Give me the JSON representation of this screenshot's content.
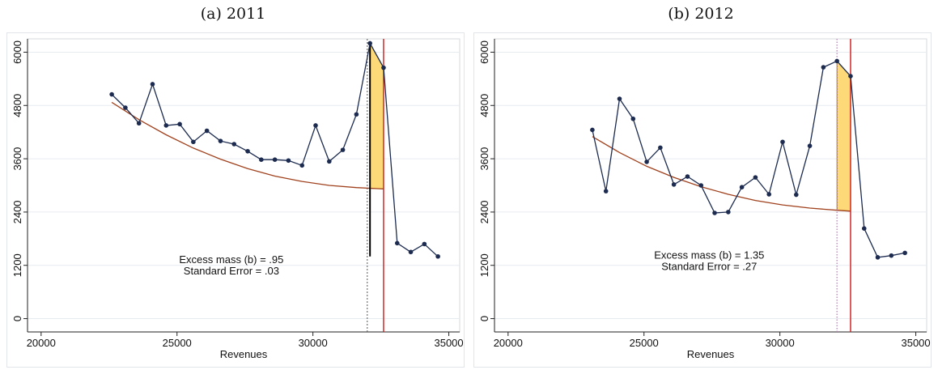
{
  "chart_data": [
    {
      "type": "line",
      "title": "(a) 2011",
      "xlabel": "Revenues",
      "ylabel": "",
      "xlim": [
        19500,
        35400
      ],
      "ylim": [
        -300,
        6300
      ],
      "xticks": [
        20000,
        25000,
        30000,
        35000
      ],
      "yticks": [
        0,
        1200,
        2400,
        3600,
        4800,
        6000
      ],
      "grid": true,
      "legend": "none",
      "series": [
        {
          "x": [
            22600,
            23100,
            23600,
            24100,
            24600,
            25100,
            25600,
            26100,
            26600,
            27100,
            27600,
            28100,
            28600,
            29100,
            29600,
            30100,
            30600,
            31100,
            31600,
            32100,
            32600,
            33100,
            33600,
            34100,
            34600
          ],
          "values": [
            5050,
            4750,
            4400,
            5280,
            4350,
            4380,
            3980,
            4230,
            4000,
            3930,
            3770,
            3580,
            3580,
            3560,
            3450,
            4350,
            3540,
            3800,
            4600,
            6200,
            5650,
            1700,
            1500,
            1680,
            1400
          ]
        }
      ],
      "fit_curve": {
        "x": [
          22600,
          23600,
          24600,
          25600,
          26600,
          27600,
          28600,
          29600,
          30600,
          31600,
          32600
        ],
        "values": [
          4870,
          4480,
          4140,
          3840,
          3590,
          3380,
          3210,
          3090,
          3000,
          2950,
          2920
        ]
      },
      "excess_region": {
        "x_from": 32100,
        "x_to": 32600
      },
      "lines": {
        "dashed_x": 32000,
        "black_x": 32100,
        "black_top": 6200,
        "black_bottom": 1400,
        "red_x": 32600
      },
      "annotations": [
        "Excess mass (b) = .95",
        "Standard Error = .03"
      ],
      "annotation_pos": [
        27000,
        1250
      ],
      "colors": {
        "series": "#1c2b4f",
        "fit": "#a0411d",
        "fill": "#fdd978",
        "red": "#cc1a1a",
        "black": "#000000",
        "grid": "#e6ebf0"
      }
    },
    {
      "type": "line",
      "title": "(b) 2012",
      "xlabel": "Revenues",
      "ylabel": "",
      "xlim": [
        19500,
        35400
      ],
      "ylim": [
        -300,
        6300
      ],
      "xticks": [
        20000,
        25000,
        30000,
        35000
      ],
      "yticks": [
        0,
        1200,
        2400,
        3600,
        4800,
        6000
      ],
      "grid": true,
      "legend": "none",
      "series": [
        {
          "x": [
            23100,
            23600,
            24100,
            24600,
            25100,
            25600,
            26100,
            26600,
            27100,
            27600,
            28100,
            28600,
            29100,
            29600,
            30100,
            30600,
            31100,
            31600,
            32100,
            32600,
            33100,
            33600,
            34100,
            34600
          ],
          "values": [
            4250,
            2870,
            4950,
            4500,
            3530,
            3850,
            3020,
            3200,
            3000,
            2380,
            2400,
            2960,
            3180,
            2800,
            3980,
            2790,
            3890,
            5660,
            5800,
            5460,
            2030,
            1380,
            1420,
            1480
          ]
        }
      ],
      "fit_curve": {
        "x": [
          23100,
          24100,
          25100,
          26100,
          27100,
          28100,
          29100,
          30100,
          31100,
          32100,
          32600
        ],
        "values": [
          4100,
          3740,
          3430,
          3180,
          2970,
          2800,
          2660,
          2560,
          2490,
          2440,
          2420
        ]
      },
      "excess_region": {
        "x_from": 32100,
        "x_to": 32600
      },
      "lines": {
        "dotted_x": 32100,
        "red_x": 32600
      },
      "annotations": [
        "Excess mass (b) = 1.35",
        "Standard Error = .27"
      ],
      "annotation_pos": [
        27400,
        1350
      ],
      "colors": {
        "series": "#1c2b4f",
        "fit": "#a0411d",
        "fill": "#fdd978",
        "red": "#cc1a1a",
        "dotted": "#b07db0",
        "grid": "#e6ebf0"
      }
    }
  ]
}
